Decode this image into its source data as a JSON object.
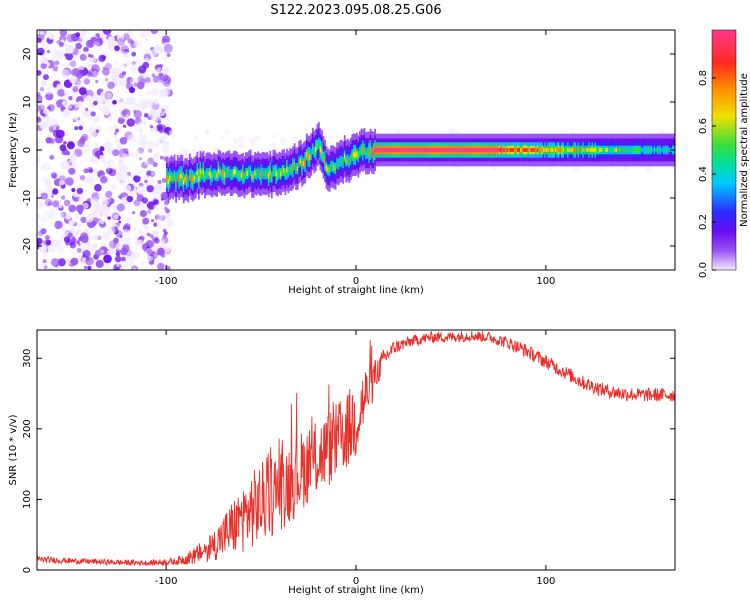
{
  "figure_title": "S122.2023.095.08.25.G06",
  "colors": {
    "snr_line": "#e8302a",
    "colormap": [
      "#f2e9ff",
      "#9c55f5",
      "#6a0cf0",
      "#2a2cff",
      "#00c8ff",
      "#00e0a0",
      "#38e03a",
      "#f0e000",
      "#ff8a00",
      "#ff2a20",
      "#ff3a8a"
    ]
  },
  "chart_data": [
    {
      "type": "heatmap",
      "xlabel": "Height of straight line (km)",
      "ylabel": "Frequency (Hz)",
      "xlim": [
        -168,
        168
      ],
      "ylim": [
        -25,
        25
      ],
      "x_ticks": [
        -100,
        0,
        100
      ],
      "y_ticks": [
        -20,
        -10,
        0,
        10,
        20
      ],
      "colorbar": {
        "label": "Normalized spectral amplitude",
        "range": [
          0,
          1
        ],
        "ticks": [
          0.0,
          0.2,
          0.4,
          0.6,
          0.8
        ]
      },
      "ridge": {
        "x": [
          -100,
          -90,
          -80,
          -70,
          -60,
          -50,
          -40,
          -30,
          -20,
          -15,
          -12,
          -8,
          -5,
          0,
          5,
          10,
          50,
          100,
          150,
          168
        ],
        "y": [
          -6,
          -6,
          -5,
          -5,
          -5,
          -5,
          -5,
          -3,
          1,
          -4,
          -4,
          -2,
          -2,
          -1,
          0,
          0,
          0,
          0,
          0,
          0
        ]
      },
      "ridge_peak": {
        "x_start": 8,
        "x_end": 75,
        "y": 0,
        "amplitude": 1.0
      },
      "noise_region": {
        "x_range": [
          -168,
          -98
        ],
        "y_range": [
          -25,
          25
        ]
      },
      "grid": false
    },
    {
      "type": "line",
      "xlabel": "Height of straight line (km)",
      "ylabel": "SNR (10 * v/v)",
      "xlim": [
        -168,
        168
      ],
      "ylim": [
        0,
        340
      ],
      "x_ticks": [
        -100,
        0,
        100
      ],
      "y_ticks": [
        0,
        100,
        200,
        300
      ],
      "series": [
        {
          "x": [
            -168,
            -150,
            -130,
            -110,
            -95,
            -85,
            -75,
            -65,
            -55,
            -45,
            -35,
            -25,
            -15,
            -5,
            0,
            5,
            10,
            15,
            20,
            30,
            40,
            50,
            60,
            70,
            80,
            90,
            100,
            110,
            120,
            130,
            140,
            150,
            160,
            168
          ],
          "y": [
            15,
            13,
            11,
            10,
            12,
            20,
            35,
            60,
            85,
            105,
            125,
            150,
            170,
            195,
            215,
            245,
            275,
            300,
            315,
            325,
            330,
            330,
            332,
            330,
            322,
            310,
            295,
            280,
            265,
            255,
            250,
            248,
            248,
            248
          ],
          "noise_amplitude": [
            5,
            4,
            4,
            4,
            5,
            12,
            22,
            40,
            55,
            60,
            60,
            55,
            55,
            55,
            60,
            45,
            25,
            14,
            10,
            8,
            8,
            8,
            8,
            8,
            9,
            10,
            10,
            10,
            10,
            10,
            10,
            10,
            10,
            10
          ]
        }
      ],
      "grid": false
    }
  ]
}
